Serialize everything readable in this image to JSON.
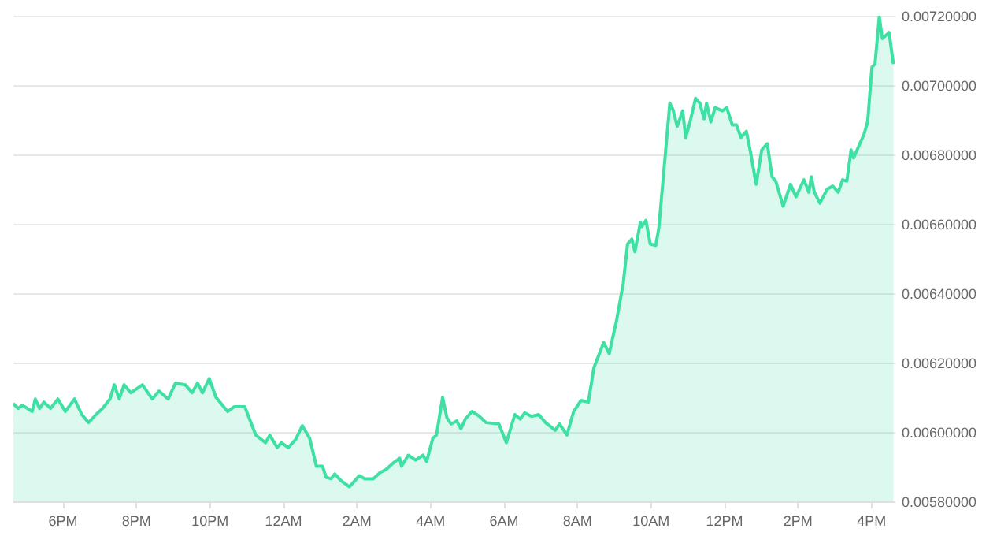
{
  "chart_data": {
    "type": "area",
    "color": "#3fe0a4",
    "grid": "y",
    "xlim": [
      "--01-01T16:39",
      "--01-02T16:39"
    ],
    "xticks": [
      {
        "value": "--01-01T18:00",
        "label": "6PM"
      },
      {
        "value": "--01-01T20:00",
        "label": "8PM"
      },
      {
        "value": "--01-01T22:00",
        "label": "10PM"
      },
      {
        "value": "--01-02T00:00",
        "label": "12AM"
      },
      {
        "value": "--01-02T02:00",
        "label": "2AM"
      },
      {
        "value": "--01-02T04:00",
        "label": "4AM"
      },
      {
        "value": "--01-02T06:00",
        "label": "6AM"
      },
      {
        "value": "--01-02T08:00",
        "label": "8AM"
      },
      {
        "value": "--01-02T10:00",
        "label": "10AM"
      },
      {
        "value": "--01-02T12:00",
        "label": "12PM"
      },
      {
        "value": "--01-02T14:00",
        "label": "2PM"
      },
      {
        "value": "--01-02T16:00",
        "label": "4PM"
      }
    ],
    "ylim": [
      0.0058,
      0.0072
    ],
    "yticks": [
      {
        "value": 0.0058,
        "label": "0.00580000"
      },
      {
        "value": 0.006,
        "label": "0.00600000"
      },
      {
        "value": 0.0062,
        "label": "0.00620000"
      },
      {
        "value": 0.0064,
        "label": "0.00640000"
      },
      {
        "value": 0.0066,
        "label": "0.00660000"
      },
      {
        "value": 0.0068,
        "label": "0.00680000"
      },
      {
        "value": 0.007,
        "label": "0.00700000"
      },
      {
        "value": 0.0072,
        "label": "0.00720000"
      }
    ],
    "x": [
      "--01-01T16:40",
      "--01-01T16:48",
      "--01-01T16:55",
      "--01-01T17:11",
      "--01-01T17:16",
      "--01-01T17:23",
      "--01-01T17:30",
      "--01-01T17:41",
      "--01-01T17:53",
      "--01-01T18:05",
      "--01-01T18:20",
      "--01-01T18:32",
      "--01-01T18:43",
      "--01-01T18:55",
      "--01-01T19:06",
      "--01-01T19:18",
      "--01-01T19:25",
      "--01-01T19:33",
      "--01-01T19:41",
      "--01-01T19:52",
      "--01-01T20:11",
      "--01-01T20:27",
      "--01-01T20:38",
      "--01-01T20:53",
      "--01-01T21:05",
      "--01-01T21:21",
      "--01-01T21:32",
      "--01-01T21:41",
      "--01-01T21:49",
      "--01-01T22:00",
      "--01-01T22:11",
      "--01-01T22:30",
      "--01-01T22:41",
      "--01-01T22:58",
      "--01-01T23:16",
      "--01-01T23:32",
      "--01-01T23:39",
      "--01-01T23:51",
      "--01-01T23:58",
      "--01-02T00:09",
      "--01-02T00:21",
      "--01-02T00:32",
      "--01-02T00:44",
      "--01-02T00:55",
      "--01-02T01:05",
      "--01-02T01:11",
      "--01-02T01:19",
      "--01-02T01:25",
      "--01-02T01:35",
      "--01-02T01:49",
      "--01-02T01:58",
      "--01-02T02:05",
      "--01-02T02:14",
      "--01-02T02:28",
      "--01-02T02:39",
      "--01-02T02:49",
      "--01-02T03:00",
      "--01-02T03:11",
      "--01-02T03:14",
      "--01-02T03:25",
      "--01-02T03:37",
      "--01-02T03:49",
      "--01-02T03:55",
      "--01-02T04:05",
      "--01-02T04:11",
      "--01-02T04:21",
      "--01-02T04:28",
      "--01-02T04:35",
      "--01-02T04:44",
      "--01-02T04:51",
      "--01-02T04:58",
      "--01-02T05:09",
      "--01-02T05:21",
      "--01-02T05:32",
      "--01-02T05:53",
      "--01-02T06:05",
      "--01-02T06:19",
      "--01-02T06:28",
      "--01-02T06:35",
      "--01-02T06:46",
      "--01-02T06:58",
      "--01-02T07:09",
      "--01-02T07:25",
      "--01-02T07:32",
      "--01-02T07:44",
      "--01-02T07:55",
      "--01-02T08:07",
      "--01-02T08:19",
      "--01-02T08:28",
      "--01-02T08:35",
      "--01-02T08:44",
      "--01-02T08:53",
      "--01-02T09:05",
      "--01-02T09:16",
      "--01-02T09:23",
      "--01-02T09:30",
      "--01-02T09:35",
      "--01-02T09:44",
      "--01-02T09:46",
      "--01-02T09:53",
      "--01-02T10:00",
      "--01-02T10:09",
      "--01-02T10:14",
      "--01-02T10:21",
      "--01-02T10:32",
      "--01-02T10:37",
      "--01-02T10:44",
      "--01-02T10:53",
      "--01-02T10:58",
      "--01-02T11:05",
      "--01-02T11:14",
      "--01-02T11:21",
      "--01-02T11:28",
      "--01-02T11:32",
      "--01-02T11:39",
      "--01-02T11:46",
      "--01-02T11:58",
      "--01-02T12:05",
      "--01-02T12:14",
      "--01-02T12:21",
      "--01-02T12:28",
      "--01-02T12:37",
      "--01-02T12:44",
      "--01-02T12:53",
      "--01-02T13:02",
      "--01-02T13:11",
      "--01-02T13:19",
      "--01-02T13:25",
      "--01-02T13:37",
      "--01-02T13:49",
      "--01-02T13:58",
      "--01-02T14:11",
      "--01-02T14:19",
      "--01-02T14:23",
      "--01-02T14:28",
      "--01-02T14:37",
      "--01-02T14:49",
      "--01-02T14:58",
      "--01-02T15:07",
      "--01-02T15:14",
      "--01-02T15:21",
      "--01-02T15:28",
      "--01-02T15:32",
      "--01-02T15:49",
      "--01-02T15:55",
      "--01-02T16:02",
      "--01-02T16:07",
      "--01-02T16:14",
      "--01-02T16:19",
      "--01-02T16:30",
      "--01-02T16:37"
    ],
    "values": [
      0.006082,
      0.006068,
      0.006077,
      0.006059,
      0.006095,
      0.006068,
      0.006086,
      0.006068,
      0.006095,
      0.006059,
      0.006095,
      0.00605,
      0.006027,
      0.00605,
      0.006068,
      0.006095,
      0.006136,
      0.006095,
      0.006136,
      0.006113,
      0.006136,
      0.006095,
      0.006118,
      0.006095,
      0.006141,
      0.006136,
      0.006113,
      0.006141,
      0.006113,
      0.006154,
      0.0061,
      0.006059,
      0.006073,
      0.006073,
      0.005991,
      0.005969,
      0.005991,
      0.005955,
      0.005969,
      0.005955,
      0.005978,
      0.006018,
      0.005982,
      0.005901,
      0.005901,
      0.005869,
      0.005865,
      0.005879,
      0.00586,
      0.005842,
      0.00586,
      0.005874,
      0.005865,
      0.005865,
      0.005883,
      0.005892,
      0.00591,
      0.005924,
      0.005901,
      0.005933,
      0.005919,
      0.005933,
      0.005915,
      0.005982,
      0.005991,
      0.0061,
      0.006041,
      0.006023,
      0.006032,
      0.006009,
      0.006037,
      0.006059,
      0.006045,
      0.006027,
      0.006023,
      0.005969,
      0.00605,
      0.006037,
      0.006055,
      0.006045,
      0.00605,
      0.006027,
      0.006005,
      0.006023,
      0.005991,
      0.006059,
      0.006091,
      0.006086,
      0.006185,
      0.006217,
      0.006258,
      0.006226,
      0.006321,
      0.006429,
      0.006542,
      0.006556,
      0.00652,
      0.006605,
      0.006592,
      0.00661,
      0.006542,
      0.006538,
      0.006587,
      0.006727,
      0.006948,
      0.00693,
      0.006881,
      0.006926,
      0.006849,
      0.006894,
      0.006962,
      0.006948,
      0.006903,
      0.006948,
      0.006894,
      0.006935,
      0.006926,
      0.006935,
      0.006885,
      0.006885,
      0.006849,
      0.006867,
      0.006804,
      0.006714,
      0.006813,
      0.006831,
      0.006736,
      0.006723,
      0.006651,
      0.006714,
      0.006678,
      0.006727,
      0.006691,
      0.006736,
      0.006691,
      0.00666,
      0.0067,
      0.006709,
      0.006691,
      0.006727,
      0.006723,
      0.006813,
      0.00679,
      0.006858,
      0.006894,
      0.007052,
      0.007061,
      0.007197,
      0.007134,
      0.007152,
      0.007061
    ]
  }
}
